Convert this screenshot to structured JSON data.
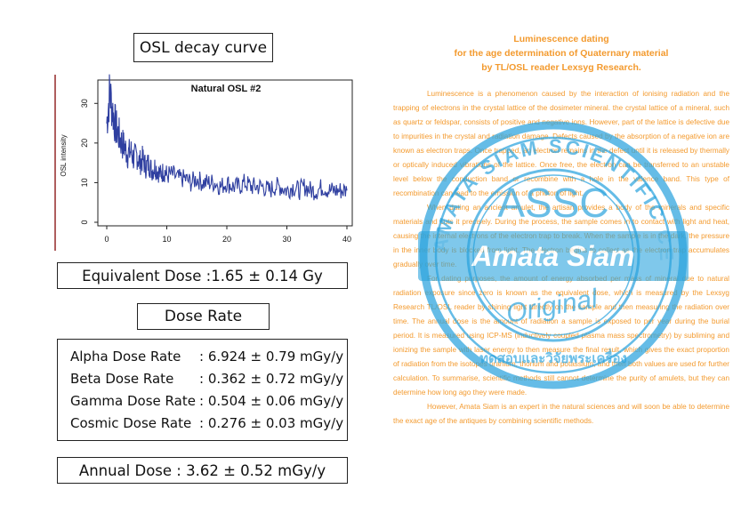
{
  "left": {
    "osl_title": "OSL decay curve",
    "equivalent_dose": "Equivalent Dose :1.65 ± 0.14 Gy",
    "dose_rate_title": "Dose Rate",
    "rates": [
      {
        "name": "Alpha Dose Rate",
        "value": ": 6.924 ± 0.79 mGy/y"
      },
      {
        "name": "Beta Dose Rate",
        "value": ": 0.362 ± 0.72 mGy/y"
      },
      {
        "name": "Gamma Dose Rate",
        "value": ": 0.504 ± 0.06 mGy/y"
      },
      {
        "name": "Cosmic Dose Rate",
        "value": ": 0.276 ± 0.03 mGy/y"
      }
    ],
    "annual_dose": "Annual Dose : 3.62 ± 0.52 mGy/y"
  },
  "chart_data": {
    "type": "line",
    "title": "Natural OSL #2",
    "xlabel": "",
    "ylabel": "OSL intensity",
    "xlim": [
      0,
      40
    ],
    "ylim": [
      0,
      35
    ],
    "xticks": [
      "0",
      "10",
      "20",
      "30",
      "40"
    ],
    "yticks": [
      "0",
      "10",
      "20",
      "30"
    ],
    "grid": false,
    "series": [
      {
        "color": "#2f3fa0",
        "x": [
          0,
          0.5,
          1,
          1.5,
          2,
          2.5,
          3,
          3.5,
          4,
          4.5,
          5,
          5.5,
          6,
          6.5,
          7,
          7.5,
          8,
          8.5,
          9,
          9.5,
          10,
          11,
          12,
          13,
          14,
          15,
          16,
          17,
          18,
          19,
          20,
          21,
          22,
          23,
          24,
          25,
          26,
          27,
          28,
          29,
          30,
          31,
          32,
          33,
          34,
          35,
          36,
          37,
          38,
          39,
          40
        ],
        "values": [
          25,
          33,
          28,
          24,
          22,
          20,
          19,
          17,
          18,
          16,
          17,
          15,
          16,
          14,
          15,
          13,
          14,
          13,
          12,
          13,
          12,
          12,
          11,
          11,
          10,
          11,
          10,
          10,
          10,
          9,
          10,
          9,
          9,
          10,
          9,
          9,
          9,
          8,
          9,
          9,
          8,
          9,
          8,
          9,
          8,
          8,
          9,
          8,
          8,
          8,
          8
        ]
      }
    ]
  },
  "right": {
    "heading_1": "Luminescence dating",
    "heading_2": "for the age determination of Quaternary material",
    "heading_3": "by TL/OSL reader Lexsyg Research.",
    "p1": "Luminescence is a phenomenon caused by the interaction of ionising radiation and the trapping of electrons in the crystal lattice of the dosimeter mineral. the crystal lattice of a mineral, such as quartz or feldspar, consists of positive and negative ions. However, part of the lattice is defective due to impurities in the crystal and radiation damage. Defects caused by the absorption of a negative ion are known as electron traps. Once trapped, an electron remains in the defect until it is released by thermally or optically induced vibrations of the lattice. Once free, the electron can be transferred to an unstable level below the conduction band or recombine with a hole in the valence band. This type of recombination can lead to the emission of a photon of light.",
    "p2": "When dating an ancient amulet, the artisan provides a body of the minerals and specific materials and cuts it precisely. During the process, the sample comes in to contact with light and heat, causing the internal electrons of the electron trap to break. When the sample is in the dark, the pressure in the inner body is blocked from light. The electron begins to collect as the electron trap accumulates gradually over time.",
    "p3": "For dating purposes, the amount of energy absorbed per mass of mineral due to natural radiation exposure since zero is known as the equivalent dose, which is measured by the Lexsyg Research TL/OSL reader by shining light directly on the sample and then measuring the radiation over time. The annual dose is the amount of radiation a sample is exposed to per year during the burial period. It is measured using ICP-MS (inductively coupled plasma mass spectrometry) by subliming and ionizing the sample with laser energy to then measure the final result, which gives the exact proportion of radiation from the isotopes uranium, thorium and potassium, and then both values are used for further calculation. To summarise, scientific methods still cannot determine the purity of amulets, but they can determine how long ago they were made.",
    "p4": "However, Amata Siam is an expert in the natural sciences and will soon be able to determine the exact age of the antiques by combining scientific methods."
  },
  "stamp": {
    "ring_text": "AMATA SIAM SCIENTIFIC CENTER",
    "logo": "ASSC",
    "ribbon": "Amata Siam",
    "script": "Original",
    "thai": "ทดสอบและวิจัยพระเครื่อง",
    "color": "#2aa3de"
  }
}
